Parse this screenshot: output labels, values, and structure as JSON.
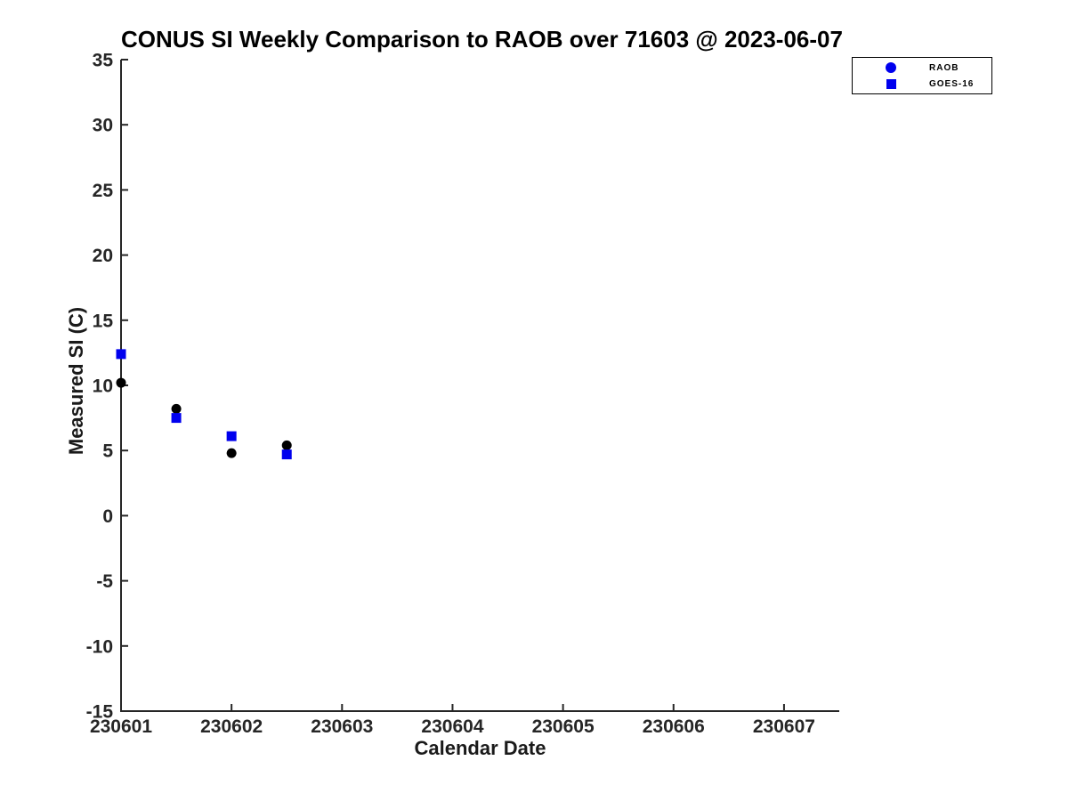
{
  "chart_data": {
    "type": "scatter",
    "title": "CONUS SI Weekly Comparison to RAOB over 71603 @ 2023-06-07",
    "xlabel": "Calendar Date",
    "ylabel": "Measured SI (C)",
    "xlim": [
      230601,
      230607.5
    ],
    "ylim": [
      -15,
      35
    ],
    "xticks": [
      230601,
      230602,
      230603,
      230604,
      230605,
      230606,
      230607
    ],
    "yticks": [
      -15,
      -10,
      -5,
      0,
      5,
      10,
      15,
      20,
      25,
      30,
      35
    ],
    "grid": false,
    "axis_color": "#262626",
    "title_color": "#000000",
    "background_color": "#ffffff",
    "legend": {
      "position": "top-right",
      "entries": [
        {
          "label": "RAOB",
          "marker": "circle",
          "color": "#0000ee"
        },
        {
          "label": "GOES-16",
          "marker": "square",
          "color": "#0000ee"
        }
      ]
    },
    "series": [
      {
        "name": "RAOB",
        "marker": "circle",
        "color": "#000000",
        "points": [
          [
            230601,
            10.2
          ],
          [
            230601.5,
            8.2
          ],
          [
            230602,
            4.8
          ],
          [
            230602.5,
            5.4
          ]
        ]
      },
      {
        "name": "GOES-16",
        "marker": "square",
        "color": "#0000ee",
        "points": [
          [
            230601,
            12.4
          ],
          [
            230601.5,
            7.5
          ],
          [
            230602,
            6.1
          ],
          [
            230602.5,
            4.7
          ]
        ]
      }
    ]
  }
}
